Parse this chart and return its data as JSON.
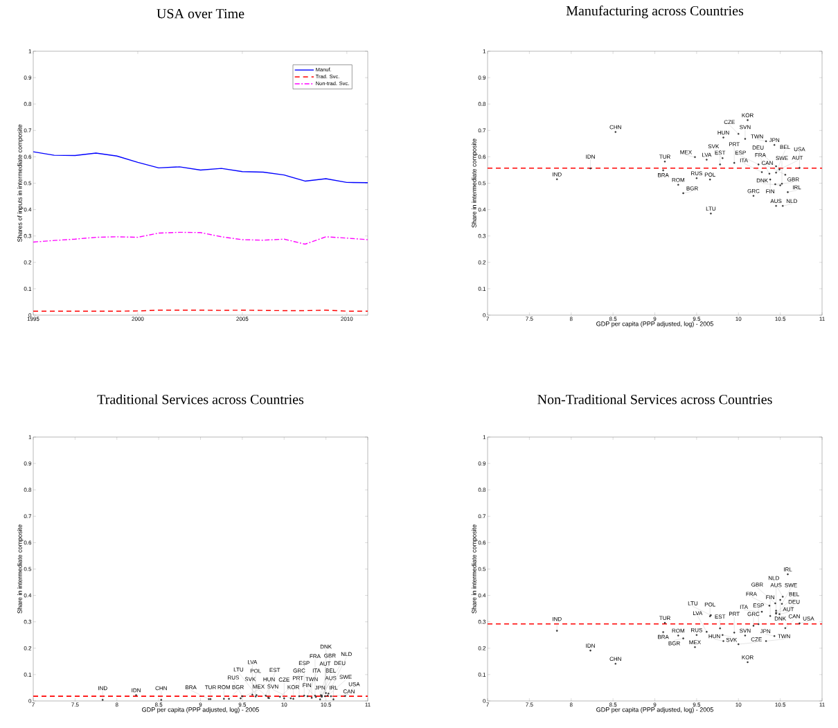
{
  "chart_data": [
    {
      "type": "line",
      "title": "USA over Time",
      "ylabel": "Shares of inputs in intermediate composite",
      "x": [
        1995,
        1996,
        1997,
        1998,
        1999,
        2000,
        2001,
        2002,
        2003,
        2004,
        2005,
        2006,
        2007,
        2008,
        2009,
        2010,
        2011
      ],
      "xlim": [
        1995,
        2011
      ],
      "ylim": [
        0,
        1
      ],
      "xticks": [
        1995,
        2000,
        2005,
        2010
      ],
      "yticks": [
        0,
        0.1,
        0.2,
        0.3,
        0.4,
        0.5,
        0.6,
        0.7,
        0.8,
        0.9,
        1
      ],
      "legend": "top right",
      "series": [
        {
          "name": "Manuf.",
          "color": "#0000ff",
          "line_style": "solid",
          "values": [
            0.619,
            0.606,
            0.605,
            0.614,
            0.603,
            0.579,
            0.558,
            0.562,
            0.55,
            0.556,
            0.544,
            0.542,
            0.531,
            0.508,
            0.517,
            0.503,
            0.502
          ]
        },
        {
          "name": "Trad. Svc.",
          "color": "#ff0000",
          "line_style": "dashed",
          "values": [
            0.015,
            0.015,
            0.015,
            0.015,
            0.015,
            0.016,
            0.019,
            0.019,
            0.019,
            0.018,
            0.019,
            0.018,
            0.017,
            0.017,
            0.019,
            0.015,
            0.015
          ]
        },
        {
          "name": "Non-trad. Svc.",
          "color": "#ff00ff",
          "line_style": "dashdot",
          "values": [
            0.277,
            0.283,
            0.288,
            0.295,
            0.297,
            0.295,
            0.311,
            0.314,
            0.313,
            0.297,
            0.286,
            0.284,
            0.288,
            0.269,
            0.297,
            0.292,
            0.286
          ]
        }
      ]
    },
    {
      "type": "scatter",
      "title": "Manufacturing across Countries",
      "xlabel": "GDP per capita (PPP adjusted, log) - 2005",
      "ylabel": "Share in intermediate composite",
      "xlim": [
        7,
        11
      ],
      "ylim": [
        0,
        1
      ],
      "xticks": [
        7,
        7.5,
        8,
        8.5,
        9,
        9.5,
        10,
        10.5,
        11
      ],
      "yticks": [
        0,
        0.1,
        0.2,
        0.3,
        0.4,
        0.5,
        0.6,
        0.7,
        0.8,
        0.9,
        1
      ],
      "marker": "circle",
      "color": "#333333",
      "ref_lines": [
        {
          "axis": "y",
          "value": 0.557,
          "color": "#ff0000",
          "line_style": "dashed"
        }
      ],
      "x": [
        10.11,
        8.53,
        9.82,
        10.0,
        10.08,
        10.33,
        10.43,
        9.48,
        9.62,
        9.81,
        9.78,
        9.95,
        9.12,
        9.1,
        8.23,
        7.83,
        10.24,
        10.45,
        10.49,
        10.73,
        10.28,
        10.37,
        10.45,
        10.56,
        10.38,
        10.44,
        10.52,
        10.5,
        10.45,
        10.53,
        10.59,
        10.18,
        9.5,
        9.66,
        9.28,
        9.34,
        9.67
      ],
      "values": [
        0.739,
        0.694,
        0.673,
        0.687,
        0.668,
        0.659,
        0.645,
        0.599,
        0.589,
        0.595,
        0.571,
        0.577,
        0.582,
        0.549,
        0.556,
        0.515,
        0.571,
        0.564,
        0.552,
        0.558,
        0.542,
        0.536,
        0.54,
        0.532,
        0.514,
        0.496,
        0.498,
        0.492,
        0.414,
        0.414,
        0.466,
        0.452,
        0.519,
        0.514,
        0.494,
        0.462,
        0.385
      ],
      "value_labels": [
        "KOR",
        "CHN",
        "HUN",
        "CZE",
        "SVN",
        "TWN",
        "JPN",
        "MEX",
        "LVA",
        "SVK",
        "EST",
        "PRT",
        "TUR",
        "BRA",
        "IDN",
        "IND",
        "ESP",
        "DEU",
        "AUT",
        "USA",
        "ITA",
        "FRA",
        "BEL",
        "CAN",
        "FIN",
        "GBR",
        "SWE",
        "DNK",
        "AUS",
        "NLD",
        "IRL",
        "GRC",
        "RUS",
        "POL",
        "ROM",
        "BGR",
        "LTU"
      ]
    },
    {
      "type": "scatter",
      "title": "Traditional Services across Countries",
      "xlabel": "GDP per capita (PPP adjusted, log) - 2005",
      "ylabel": "Share in intermediate composite",
      "xlim": [
        7,
        11
      ],
      "ylim": [
        0,
        1
      ],
      "xticks": [
        7,
        7.5,
        8,
        8.5,
        9,
        9.5,
        10,
        10.5,
        11
      ],
      "yticks": [
        0,
        0.1,
        0.2,
        0.3,
        0.4,
        0.5,
        0.6,
        0.7,
        0.8,
        0.9,
        1
      ],
      "marker": "circle",
      "color": "#333333",
      "ref_lines": [
        {
          "axis": "y",
          "value": 0.018,
          "color": "#ff0000",
          "line_style": "dashed"
        }
      ],
      "x": [
        8.23,
        7.83,
        8.53,
        10.73,
        9.12,
        9.1,
        9.28,
        9.34,
        9.48,
        9.5,
        9.62,
        9.67,
        9.78,
        9.66,
        9.81,
        10.08,
        10.0,
        9.82,
        9.95,
        10.11,
        10.18,
        10.24,
        10.28,
        10.33,
        10.43,
        10.37,
        10.45,
        10.45,
        10.49,
        10.38,
        10.44,
        10.52,
        10.5,
        10.53,
        10.45,
        10.56,
        10.59
      ],
      "values": [
        0.022,
        0.004,
        0.004,
        0.019,
        0.007,
        0.007,
        0.008,
        0.008,
        0.01,
        0.018,
        0.024,
        0.022,
        0.02,
        0.017,
        0.012,
        0.01,
        0.01,
        0.011,
        0.016,
        0.008,
        0.018,
        0.02,
        0.018,
        0.012,
        0.006,
        0.02,
        0.02,
        0.018,
        0.018,
        0.015,
        0.022,
        0.02,
        0.03,
        0.028,
        0.016,
        0.018,
        0.006
      ],
      "value_labels": [
        "IDN",
        "IND",
        "CHN",
        "USA",
        "TUR",
        "BRA",
        "ROM",
        "BGR",
        "MEX",
        "RUS",
        "LVA",
        "LTU",
        "EST",
        "POL",
        "SVK",
        "SVN",
        "CZE",
        "HUN",
        "PRT",
        "KOR",
        "GRC",
        "ESP",
        "ITA",
        "TWN",
        "JPN",
        "FRA",
        "DEU",
        "BEL",
        "AUT",
        "FIN",
        "GBR",
        "SWE",
        "DNK",
        "NLD",
        "AUS",
        "CAN",
        "IRL"
      ]
    },
    {
      "type": "scatter",
      "title": "Non-Traditional Services across Countries",
      "xlabel": "GDP per capita (PPP adjusted, log) - 2005",
      "ylabel": "Share in intermediate composite",
      "xlim": [
        7,
        11
      ],
      "ylim": [
        0,
        1
      ],
      "xticks": [
        7,
        7.5,
        8,
        8.5,
        9,
        9.5,
        10,
        10.5,
        11
      ],
      "yticks": [
        0,
        0.1,
        0.2,
        0.3,
        0.4,
        0.5,
        0.6,
        0.7,
        0.8,
        0.9,
        1
      ],
      "marker": "circle",
      "color": "#333333",
      "ref_lines": [
        {
          "axis": "y",
          "value": 0.292,
          "color": "#ff0000",
          "line_style": "dashed"
        }
      ],
      "x": [
        10.59,
        10.53,
        10.5,
        10.44,
        10.52,
        10.37,
        10.45,
        10.28,
        10.45,
        10.45,
        10.49,
        10.38,
        9.67,
        9.66,
        9.12,
        10.73,
        10.18,
        10.24,
        10.56,
        9.1,
        9.28,
        9.34,
        9.5,
        9.62,
        9.78,
        9.81,
        9.95,
        10.08,
        9.82,
        10.0,
        10.43,
        10.33,
        9.48,
        10.11,
        7.83,
        8.23,
        8.53
      ],
      "values": [
        0.48,
        0.395,
        0.383,
        0.37,
        0.368,
        0.361,
        0.342,
        0.338,
        0.331,
        0.334,
        0.329,
        0.322,
        0.325,
        0.321,
        0.296,
        0.294,
        0.285,
        0.291,
        0.276,
        0.261,
        0.248,
        0.237,
        0.25,
        0.262,
        0.275,
        0.25,
        0.259,
        0.248,
        0.227,
        0.215,
        0.246,
        0.227,
        0.204,
        0.147,
        0.266,
        0.191,
        0.141
      ],
      "value_labels": [
        "IRL",
        "NLD",
        "DNK",
        "GBR",
        "SWE",
        "FRA",
        "AUS",
        "ITA",
        "DEU",
        "BEL",
        "AUT",
        "FIN",
        "LTU",
        "POL",
        "TUR",
        "USA",
        "GRC",
        "ESP",
        "CAN",
        "BRA",
        "ROM",
        "BGR",
        "RUS",
        "LVA",
        "EST",
        "SVK",
        "PRT",
        "SVN",
        "HUN",
        "CZE",
        "JPN",
        "TWN",
        "MEX",
        "KOR",
        "IND",
        "IDN",
        "CHN"
      ]
    }
  ]
}
